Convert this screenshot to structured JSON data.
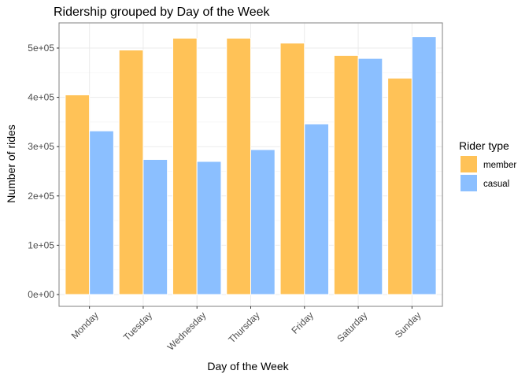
{
  "chart_data": {
    "type": "bar",
    "title": "Ridership grouped by Day of the Week",
    "xlabel": "Day of the Week",
    "ylabel": "Number of rides",
    "categories": [
      "Monday",
      "Tuesday",
      "Wednesday",
      "Thursday",
      "Friday",
      "Saturday",
      "Sunday"
    ],
    "series": [
      {
        "name": "member",
        "color": "#FFC257",
        "values": [
          405000,
          496000,
          520000,
          520000,
          510000,
          485000,
          439000
        ]
      },
      {
        "name": "casual",
        "color": "#8BBFFF",
        "values": [
          332000,
          274000,
          270000,
          294000,
          346000,
          479000,
          523000
        ]
      }
    ],
    "ylim": [
      0,
      550000
    ],
    "yticks": [
      0,
      100000,
      200000,
      300000,
      400000,
      500000
    ],
    "ytick_labels": [
      "0e+00",
      "1e+05",
      "2e+05",
      "3e+05",
      "4e+05",
      "5e+05"
    ],
    "legend_title": "Rider type",
    "legend_position": "right",
    "grid": true,
    "colors": {
      "panel_border": "#808080",
      "grid_major": "#EBEBEB",
      "grid_minor": "#F5F5F5"
    }
  }
}
